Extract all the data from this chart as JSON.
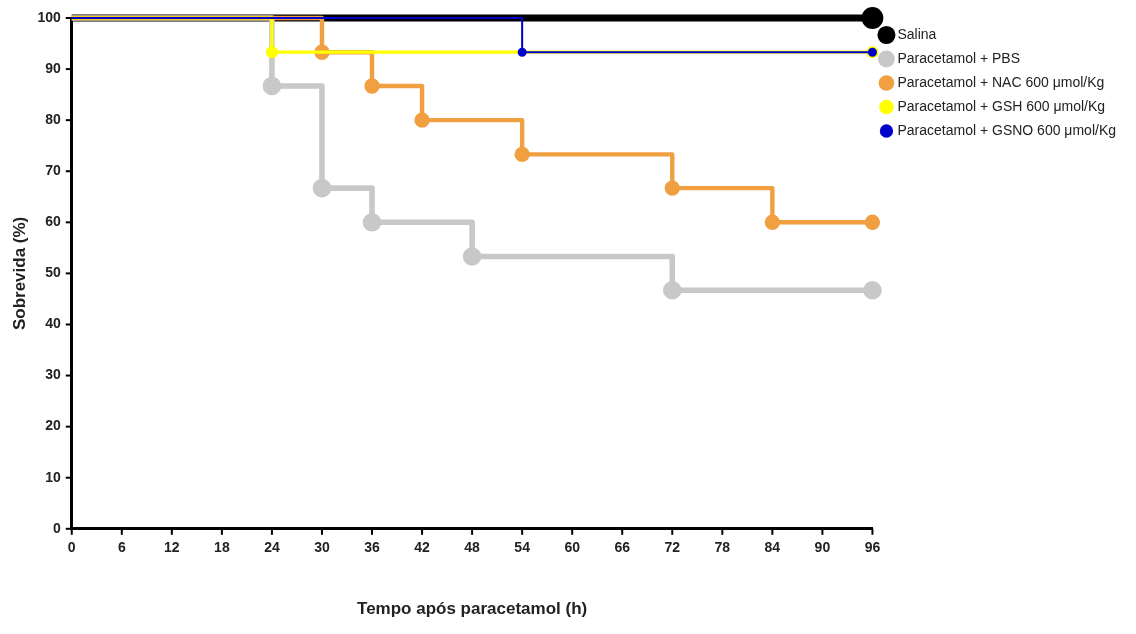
{
  "chart_data": {
    "type": "step",
    "xlabel": "Tempo após paracetamol (h)",
    "ylabel": "Sobrevida (%)",
    "xlim": [
      0,
      96
    ],
    "xticks": [
      0,
      6,
      12,
      18,
      24,
      30,
      36,
      42,
      48,
      54,
      60,
      66,
      72,
      78,
      84,
      90,
      96
    ],
    "ylim": [
      0,
      100
    ],
    "yticks": [
      0,
      10,
      20,
      30,
      40,
      50,
      60,
      70,
      80,
      90,
      100
    ],
    "grid": false,
    "legend": "right",
    "marker": "circle",
    "line_style": "solid",
    "series": [
      {
        "name": "Salina",
        "color": "#000000",
        "x": [
          0,
          96
        ],
        "values": [
          100,
          100
        ]
      },
      {
        "name": "Paracetamol + PBS",
        "color": "#c8c8c8",
        "x": [
          0,
          24,
          30,
          36,
          48,
          72,
          96
        ],
        "values": [
          100,
          86.7,
          66.7,
          60,
          53.3,
          46.7,
          46.7
        ]
      },
      {
        "name": "Paracetamol + NAC 600 μmol/Kg",
        "color": "#f0a040",
        "x": [
          0,
          30,
          36,
          42,
          54,
          72,
          84,
          96
        ],
        "values": [
          100,
          93.3,
          86.7,
          80,
          73.3,
          66.7,
          60,
          60
        ]
      },
      {
        "name": "Paracetamol + GSH 600 μmol/Kg",
        "color": "#ffff00",
        "x": [
          0,
          24,
          96
        ],
        "values": [
          100,
          93.3,
          93.3
        ]
      },
      {
        "name": "Paracetamol + GSNO 600 μmol/Kg",
        "color": "#0000cc",
        "x": [
          0,
          54,
          96
        ],
        "values": [
          100,
          93.3,
          93.3
        ]
      }
    ]
  }
}
